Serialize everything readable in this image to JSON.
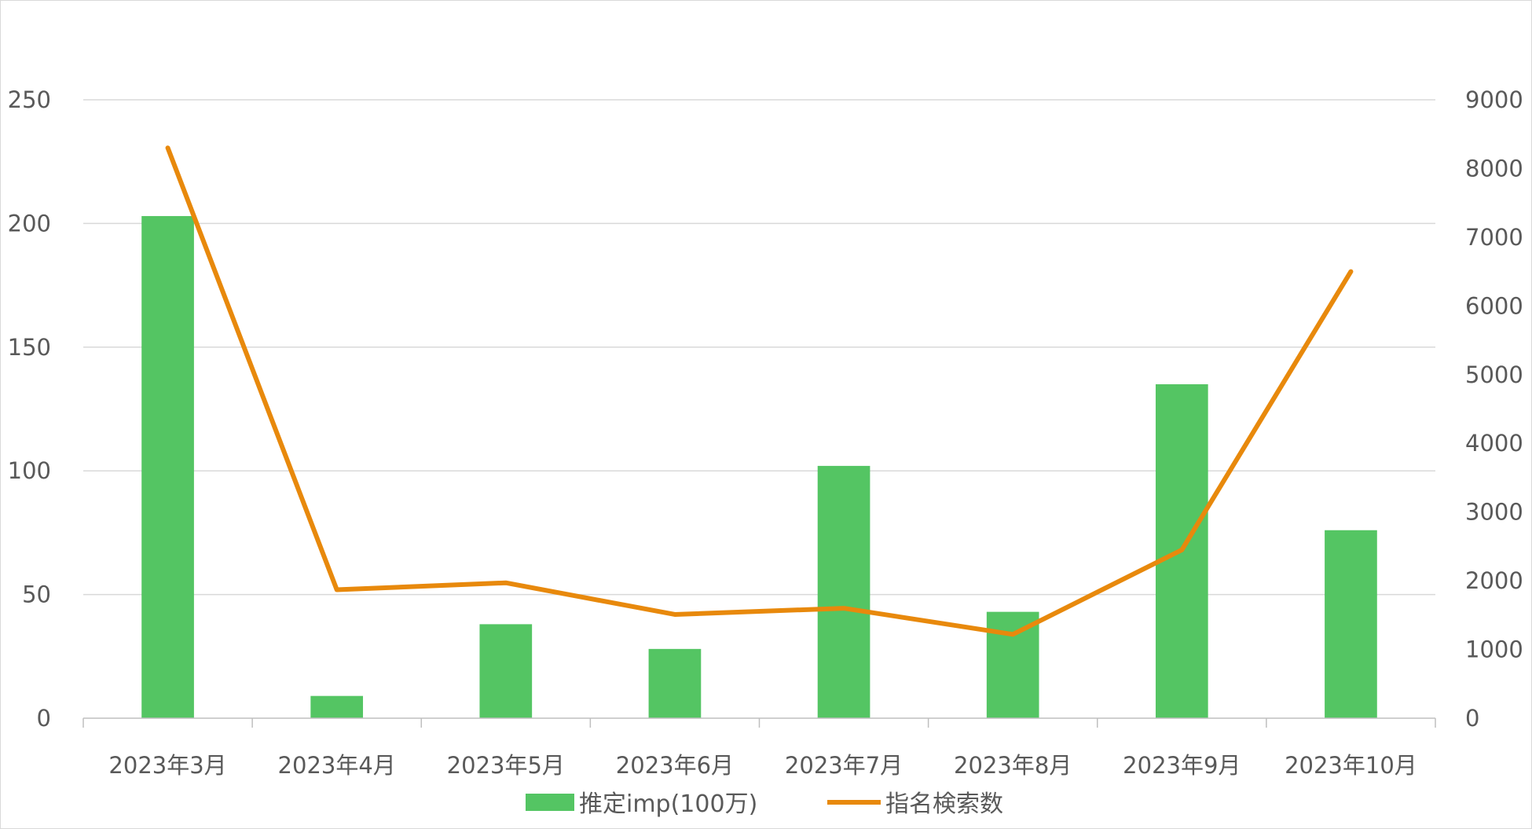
{
  "chart_data": {
    "type": "bar+line",
    "categories": [
      "2023年3月",
      "2023年4月",
      "2023年5月",
      "2023年6月",
      "2023年7月",
      "2023年8月",
      "2023年9月",
      "2023年10月"
    ],
    "series": [
      {
        "name": "推定imp(100万)",
        "type": "bar",
        "axis": "left",
        "color": "#54C563",
        "values": [
          203,
          9,
          38,
          28,
          102,
          43,
          135,
          76
        ]
      },
      {
        "name": "指名検索数",
        "type": "line",
        "axis": "right",
        "color": "#E8890C",
        "values": [
          8300,
          1870,
          1970,
          1510,
          1600,
          1220,
          2450,
          6500
        ]
      }
    ],
    "y_left": {
      "range": [
        0,
        250
      ],
      "ticks": [
        0,
        50,
        100,
        150,
        200,
        250
      ]
    },
    "y_right": {
      "range": [
        0,
        9000
      ],
      "ticks": [
        0,
        1000,
        2000,
        3000,
        4000,
        5000,
        6000,
        7000,
        8000,
        9000
      ]
    },
    "grid": true,
    "legend_position": "bottom"
  }
}
